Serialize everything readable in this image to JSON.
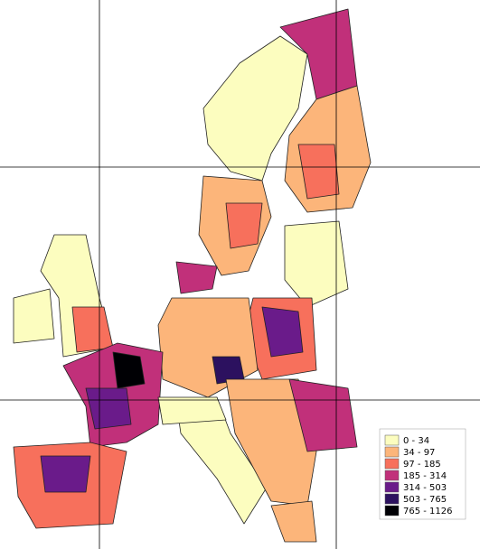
{
  "legend": {
    "items": [
      {
        "label": "0 - 34",
        "color": "#fcfdbf"
      },
      {
        "label": "34 - 97",
        "color": "#fcb57a"
      },
      {
        "label": "97 - 185",
        "color": "#f7705c"
      },
      {
        "label": "185 - 314",
        "color": "#c1307a"
      },
      {
        "label": "314 - 503",
        "color": "#6a1b8a"
      },
      {
        "label": "503 - 765",
        "color": "#2c115f"
      },
      {
        "label": "765 - 1126",
        "color": "#000004"
      }
    ]
  }
}
